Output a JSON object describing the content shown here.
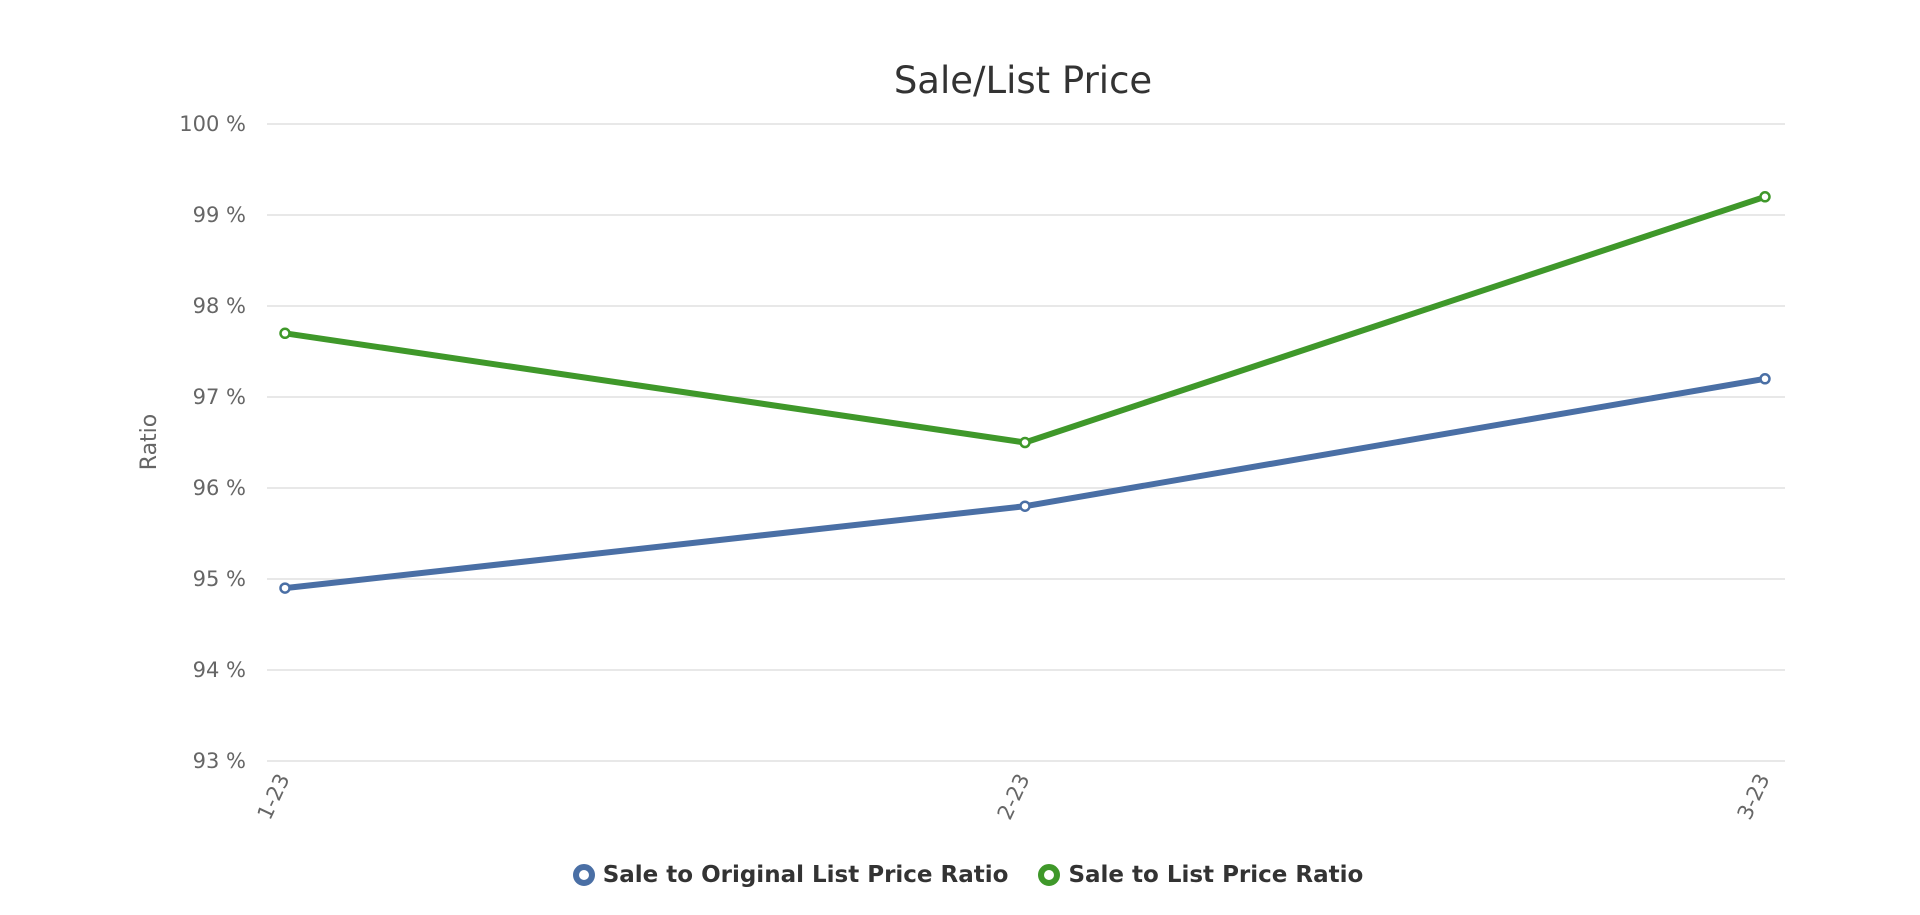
{
  "chart_data": {
    "type": "line",
    "title": "Sale/List Price",
    "xlabel": "",
    "ylabel": "Ratio",
    "categories": [
      "1-23",
      "2-23",
      "3-23"
    ],
    "y_tick_labels": [
      "100 %",
      "99 %",
      "98 %",
      "97 %",
      "96 %",
      "95 %",
      "94 %",
      "93 %"
    ],
    "ylim": [
      93,
      100
    ],
    "y_ticks": [
      100,
      99,
      98,
      97,
      96,
      95,
      94,
      93
    ],
    "grid": true,
    "legend_position": "bottom-center",
    "series": [
      {
        "name": "Sale to Original List Price Ratio",
        "color": "#4a6fa5",
        "values": [
          94.9,
          95.8,
          97.2
        ]
      },
      {
        "name": "Sale to List Price Ratio",
        "color": "#3f982a",
        "values": [
          97.7,
          96.5,
          99.2
        ]
      }
    ]
  }
}
